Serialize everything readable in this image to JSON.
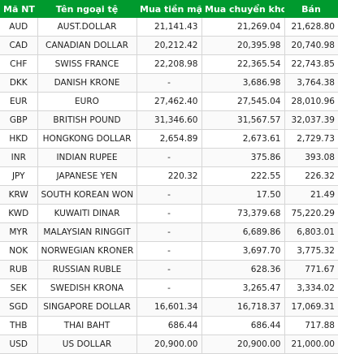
{
  "header": {
    "code": "Mã NT",
    "name": "Tên ngoại tệ",
    "cash_buy": "Mua tiền mặt",
    "transfer_buy": "Mua chuyển khoản",
    "sell": "Bán"
  },
  "rows": [
    {
      "code": "AUD",
      "name": "AUST.DOLLAR",
      "cash_buy": "21,141.43",
      "transfer_buy": "21,269.04",
      "sell": "21,628.80"
    },
    {
      "code": "CAD",
      "name": "CANADIAN DOLLAR",
      "cash_buy": "20,212.42",
      "transfer_buy": "20,395.98",
      "sell": "20,740.98"
    },
    {
      "code": "CHF",
      "name": "SWISS FRANCE",
      "cash_buy": "22,208.98",
      "transfer_buy": "22,365.54",
      "sell": "22,743.85"
    },
    {
      "code": "DKK",
      "name": "DANISH KRONE",
      "cash_buy": "-",
      "transfer_buy": "3,686.98",
      "sell": "3,764.38"
    },
    {
      "code": "EUR",
      "name": "EURO",
      "cash_buy": "27,462.40",
      "transfer_buy": "27,545.04",
      "sell": "28,010.96"
    },
    {
      "code": "GBP",
      "name": "BRITISH POUND",
      "cash_buy": "31,346.60",
      "transfer_buy": "31,567.57",
      "sell": "32,037.39"
    },
    {
      "code": "HKD",
      "name": "HONGKONG DOLLAR",
      "cash_buy": "2,654.89",
      "transfer_buy": "2,673.61",
      "sell": "2,729.73"
    },
    {
      "code": "INR",
      "name": "INDIAN RUPEE",
      "cash_buy": "-",
      "transfer_buy": "375.86",
      "sell": "393.08"
    },
    {
      "code": "JPY",
      "name": "JAPANESE YEN",
      "cash_buy": "220.32",
      "transfer_buy": "222.55",
      "sell": "226.32"
    },
    {
      "code": "KRW",
      "name": "SOUTH KOREAN WON",
      "cash_buy": "-",
      "transfer_buy": "17.50",
      "sell": "21.49"
    },
    {
      "code": "KWD",
      "name": "KUWAITI DINAR",
      "cash_buy": "-",
      "transfer_buy": "73,379.68",
      "sell": "75,220.29"
    },
    {
      "code": "MYR",
      "name": "MALAYSIAN RINGGIT",
      "cash_buy": "-",
      "transfer_buy": "6,689.86",
      "sell": "6,803.01"
    },
    {
      "code": "NOK",
      "name": "NORWEGIAN KRONER",
      "cash_buy": "-",
      "transfer_buy": "3,697.70",
      "sell": "3,775.32"
    },
    {
      "code": "RUB",
      "name": "RUSSIAN RUBLE",
      "cash_buy": "-",
      "transfer_buy": "628.36",
      "sell": "771.67"
    },
    {
      "code": "SEK",
      "name": "SWEDISH KRONA",
      "cash_buy": "-",
      "transfer_buy": "3,265.47",
      "sell": "3,334.02"
    },
    {
      "code": "SGD",
      "name": "SINGAPORE DOLLAR",
      "cash_buy": "16,601.34",
      "transfer_buy": "16,718.37",
      "sell": "17,069.31"
    },
    {
      "code": "THB",
      "name": "THAI BAHT",
      "cash_buy": "686.44",
      "transfer_buy": "686.44",
      "sell": "717.88"
    },
    {
      "code": "USD",
      "name": "US DOLLAR",
      "cash_buy": "20,900.00",
      "transfer_buy": "20,900.00",
      "sell": "21,000.00"
    }
  ],
  "colors": {
    "header_bg": "#009a2e",
    "header_text": "#ffffff",
    "grid": "#d6d6d6"
  }
}
